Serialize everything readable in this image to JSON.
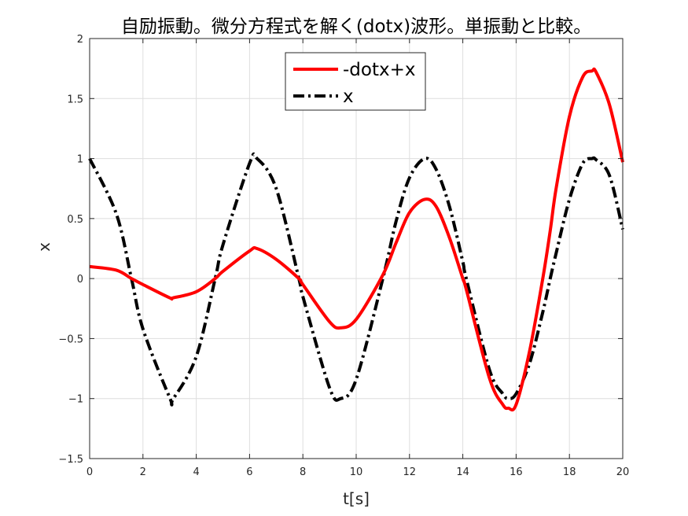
{
  "chart_data": {
    "type": "line",
    "title": "自励振動。微分方程式を解く(dotx)波形。単振動と比較。",
    "xlabel": "t[s]",
    "ylabel": "x",
    "xlim": [
      0,
      20
    ],
    "ylim": [
      -1.5,
      2
    ],
    "x_ticks": [
      "0",
      "2",
      "4",
      "6",
      "8",
      "10",
      "12",
      "14",
      "16",
      "18",
      "20"
    ],
    "y_ticks": [
      "−1.5",
      "−1",
      "−0.5",
      "0",
      "0.5",
      "1",
      "1.5",
      "2"
    ],
    "grid": true,
    "legend_position": "top-center",
    "series": [
      {
        "name": "-dotx+x",
        "color": "#ff0000",
        "style": "solid",
        "x": [
          0,
          1,
          1.57,
          2,
          3,
          3.14,
          4,
          4.71,
          5,
          6,
          6.28,
          7,
          7.85,
          8,
          9,
          9.42,
          10,
          11,
          11.5,
          12,
          12.57,
          13,
          13.5,
          14,
          14.13,
          15,
          15.5,
          15.71,
          16,
          16.5,
          17,
          17.28,
          17.5,
          18,
          18.5,
          18.85,
          19,
          19.5,
          20
        ],
        "y": [
          0.1,
          0.07,
          0.0,
          -0.05,
          -0.16,
          -0.16,
          -0.11,
          0.0,
          0.06,
          0.23,
          0.25,
          0.16,
          0.0,
          -0.05,
          -0.36,
          -0.41,
          -0.34,
          0.03,
          0.3,
          0.55,
          0.66,
          0.6,
          0.34,
          0.0,
          -0.09,
          -0.83,
          -1.05,
          -1.08,
          -1.05,
          -0.61,
          0.0,
          0.4,
          0.75,
          1.35,
          1.68,
          1.73,
          1.72,
          1.45,
          0.97
        ]
      },
      {
        "name": "x",
        "color": "#000000",
        "style": "dash-dot",
        "x": [
          0,
          1,
          1.57,
          2,
          3,
          3.14,
          4,
          4.71,
          5,
          6,
          6.28,
          7,
          7.85,
          8,
          9,
          9.42,
          10,
          11,
          11.5,
          12,
          12.57,
          13,
          13.5,
          14,
          14.13,
          15,
          15.5,
          15.71,
          16,
          16.5,
          17,
          17.28,
          17.5,
          18,
          18.5,
          18.85,
          19,
          19.5,
          20
        ],
        "y": [
          1.0,
          0.54,
          0.0,
          -0.42,
          -0.99,
          -1.0,
          -0.65,
          0.0,
          0.28,
          0.96,
          1.0,
          0.75,
          0.0,
          -0.15,
          -0.91,
          -1.0,
          -0.84,
          0.0,
          0.48,
          0.84,
          1.0,
          0.91,
          0.6,
          0.14,
          0.0,
          -0.76,
          -0.96,
          -1.0,
          -0.96,
          -0.71,
          -0.28,
          0.0,
          0.21,
          0.66,
          0.96,
          1.0,
          0.99,
          0.86,
          0.41
        ]
      }
    ]
  }
}
